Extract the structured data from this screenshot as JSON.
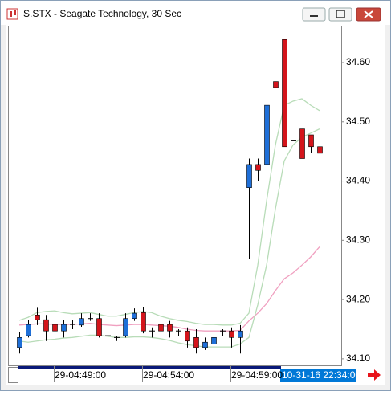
{
  "window": {
    "title": "S.STX - Seagate Technology, 30 Sec"
  },
  "chart_data": {
    "type": "candlestick",
    "categories": [
      null,
      null,
      null,
      null,
      "29-04:49:00",
      null,
      null,
      null,
      null,
      null,
      null,
      null,
      null,
      null,
      "29-04:54:00",
      null,
      null,
      null,
      null,
      null,
      null,
      null,
      null,
      null,
      "29-04:59:00",
      null,
      null,
      null,
      null,
      null,
      null,
      null,
      null,
      null,
      null
    ],
    "open": [
      34.119,
      34.139,
      34.174,
      34.166,
      34.158,
      34.147,
      34.158,
      34.157,
      34.168,
      34.168,
      34.139,
      34.136,
      34.139,
      34.168,
      34.178,
      34.147,
      34.158,
      34.158,
      34.147,
      34.147,
      34.136,
      34.119,
      34.125,
      34.147,
      34.147,
      34.136,
      34.389,
      34.428,
      34.428,
      34.568,
      34.639,
      34.468,
      34.488,
      34.478,
      34.458
    ],
    "high": [
      34.145,
      34.166,
      34.186,
      34.174,
      34.166,
      34.166,
      34.166,
      34.177,
      34.177,
      34.177,
      34.147,
      34.139,
      34.177,
      34.185,
      34.188,
      34.153,
      34.166,
      34.164,
      34.15,
      34.153,
      34.15,
      34.136,
      34.147,
      34.15,
      34.153,
      34.157,
      34.438,
      34.438,
      34.528,
      34.568,
      34.639,
      34.468,
      34.488,
      34.478,
      34.508
    ],
    "low": [
      34.109,
      34.136,
      34.157,
      34.13,
      34.13,
      34.136,
      34.15,
      34.154,
      34.164,
      34.136,
      34.13,
      34.13,
      34.136,
      34.164,
      34.143,
      34.136,
      34.139,
      34.136,
      34.139,
      34.119,
      34.109,
      34.115,
      34.119,
      34.139,
      34.119,
      34.109,
      34.268,
      34.4,
      34.428,
      34.558,
      34.458,
      34.468,
      34.438,
      34.447,
      34.447
    ],
    "close": [
      34.136,
      34.158,
      34.166,
      34.147,
      34.147,
      34.158,
      34.158,
      34.168,
      34.168,
      34.139,
      34.139,
      34.136,
      34.168,
      34.177,
      34.147,
      34.147,
      34.147,
      34.147,
      34.147,
      34.13,
      34.119,
      34.128,
      34.136,
      34.147,
      34.136,
      34.147,
      34.428,
      34.418,
      34.528,
      34.558,
      34.458,
      34.468,
      34.438,
      34.458,
      34.447
    ],
    "up_color": "#1e6fd8",
    "down_color": "#d4141b",
    "indicators": [
      {
        "color": "#b8dcb8",
        "values": [
          34.165,
          34.17,
          34.178,
          34.18,
          34.181,
          34.178,
          34.176,
          34.177,
          34.178,
          34.175,
          34.172,
          34.172,
          34.175,
          34.178,
          34.18,
          34.178,
          34.172,
          34.168,
          34.165,
          34.163,
          34.16,
          34.158,
          34.158,
          34.157,
          34.157,
          34.16,
          34.177,
          34.258,
          34.366,
          34.461,
          34.528,
          34.535,
          34.539,
          34.528,
          34.519
        ]
      },
      {
        "color": "#f0a0c0",
        "values": [
          34.157,
          34.158,
          34.159,
          34.159,
          34.158,
          34.158,
          34.158,
          34.159,
          34.16,
          34.158,
          34.157,
          34.156,
          34.157,
          34.158,
          34.158,
          34.157,
          34.156,
          34.155,
          34.153,
          34.15,
          34.148,
          34.147,
          34.147,
          34.147,
          34.147,
          34.148,
          34.164,
          34.177,
          34.193,
          34.215,
          34.235,
          34.245,
          34.258,
          34.272,
          34.289
        ]
      },
      {
        "color": "#b8dcb8",
        "values": [
          34.13,
          34.128,
          34.13,
          34.132,
          34.133,
          34.135,
          34.136,
          34.138,
          34.14,
          34.14,
          34.138,
          34.136,
          34.136,
          34.137,
          34.137,
          34.136,
          34.134,
          34.131,
          34.127,
          34.124,
          34.122,
          34.12,
          34.12,
          34.12,
          34.12,
          34.125,
          34.136,
          34.191,
          34.258,
          34.353,
          34.434,
          34.461,
          34.474,
          34.481,
          34.488
        ]
      }
    ],
    "ylim": [
      34.089,
      34.661
    ],
    "yticks": [
      {
        "value": 34.1,
        "label": "34.10"
      },
      {
        "value": 34.2,
        "label": "34.20"
      },
      {
        "value": 34.3,
        "label": "34.30"
      },
      {
        "value": 34.4,
        "label": "34.40"
      },
      {
        "value": 34.5,
        "label": "34.50"
      },
      {
        "value": 34.6,
        "label": "34.60"
      }
    ],
    "cursor_label": "10-31-16 22:34:00"
  }
}
